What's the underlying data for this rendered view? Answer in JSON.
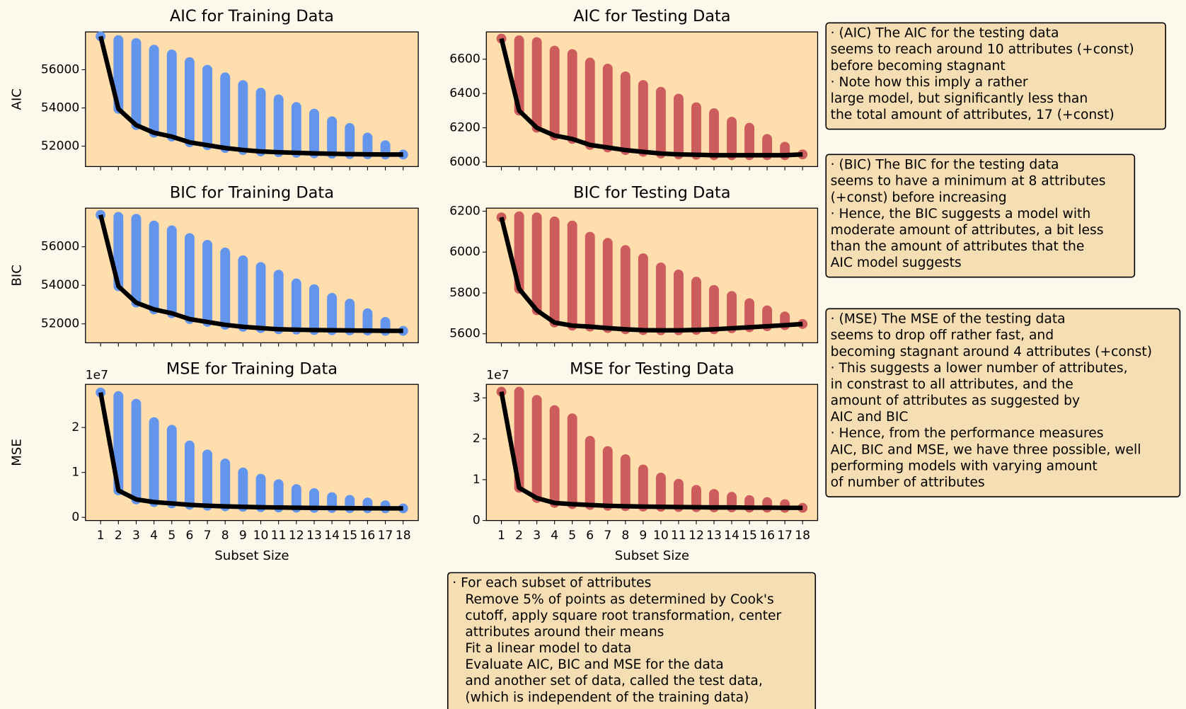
{
  "chart_data": [
    {
      "type": "range_line",
      "title": "AIC for Training Data",
      "ylabel": "AIC",
      "scatter_color": "#6495ed",
      "line_color": "#000000",
      "values": [
        57750,
        53950,
        53100,
        52700,
        52500,
        52200,
        52050,
        51900,
        51800,
        51720,
        51680,
        51650,
        51620,
        51600,
        51580,
        51570,
        51560,
        51560
      ],
      "max_values": [
        57750,
        57550,
        57400,
        57050,
        56800,
        56400,
        56000,
        55600,
        55200,
        54800,
        54450,
        54050,
        53700,
        53300,
        52950,
        52450,
        52050,
        51560
      ],
      "ylim": [
        50930,
        57980
      ],
      "yticks": [
        52000,
        54000,
        56000
      ]
    },
    {
      "type": "range_line",
      "title": "AIC for Testing Data",
      "scatter_color": "#cd5c5c",
      "line_color": "#000000",
      "values": [
        6720,
        6300,
        6200,
        6155,
        6135,
        6100,
        6085,
        6070,
        6060,
        6050,
        6045,
        6043,
        6040,
        6040,
        6040,
        6040,
        6040,
        6045
      ],
      "max_values": [
        6720,
        6710,
        6700,
        6650,
        6630,
        6580,
        6545,
        6500,
        6450,
        6410,
        6370,
        6320,
        6285,
        6235,
        6200,
        6135,
        6090,
        6045
      ],
      "ylim": [
        5974,
        6759
      ],
      "yticks": [
        6000,
        6200,
        6400,
        6600
      ]
    },
    {
      "type": "range_line",
      "title": "BIC for Training Data",
      "ylabel": "BIC",
      "scatter_color": "#6495ed",
      "line_color": "#000000",
      "values": [
        57650,
        53950,
        53100,
        52750,
        52550,
        52250,
        52100,
        51950,
        51850,
        51780,
        51720,
        51700,
        51680,
        51670,
        51660,
        51650,
        51640,
        51640
      ],
      "max_values": [
        57650,
        57550,
        57450,
        57100,
        56850,
        56450,
        56100,
        55700,
        55300,
        54950,
        54550,
        54100,
        53800,
        53350,
        53050,
        52550,
        52100,
        51640
      ],
      "ylim": [
        51020,
        58000
      ],
      "yticks": [
        52000,
        54000,
        56000
      ]
    },
    {
      "type": "range_line",
      "title": "BIC for Testing Data",
      "scatter_color": "#cd5c5c",
      "line_color": "#000000",
      "values": [
        6170,
        5820,
        5715,
        5655,
        5640,
        5635,
        5628,
        5622,
        5618,
        5617,
        5617,
        5619,
        5622,
        5627,
        5632,
        5637,
        5642,
        5648
      ],
      "max_values": [
        6170,
        6175,
        6170,
        6150,
        6130,
        6075,
        6045,
        6010,
        5970,
        5925,
        5890,
        5855,
        5815,
        5785,
        5750,
        5715,
        5685,
        5648
      ],
      "ylim": [
        5556,
        6215
      ],
      "yticks": [
        5600,
        5800,
        6000,
        6200
      ]
    },
    {
      "type": "range_line",
      "title": "MSE for Training Data",
      "ylabel": "MSE",
      "xlabel": "Subset Size",
      "offset_label": "1e7",
      "scatter_color": "#6495ed",
      "line_color": "#000000",
      "categories": [
        "1",
        "2",
        "3",
        "4",
        "5",
        "6",
        "7",
        "8",
        "9",
        "10",
        "11",
        "12",
        "13",
        "14",
        "15",
        "16",
        "17",
        "18"
      ],
      "values": [
        27800000,
        6000000,
        4000000,
        3400000,
        3100000,
        2800000,
        2600000,
        2450000,
        2350000,
        2250000,
        2200000,
        2150000,
        2100000,
        2080000,
        2050000,
        2030000,
        2010000,
        2000000
      ],
      "max_values": [
        27800000,
        27000000,
        25300000,
        21200000,
        19500000,
        16000000,
        14000000,
        12000000,
        10000000,
        8600000,
        7400000,
        6300000,
        5400000,
        4500000,
        3900000,
        3300000,
        2700000,
        2000000
      ],
      "ylim": [
        -700000,
        29600000
      ],
      "yticks": [
        0,
        {
          "value": 10000000,
          "label": "1"
        },
        {
          "value": 20000000,
          "label": "2"
        }
      ]
    },
    {
      "type": "range_line",
      "title": "MSE for Testing Data",
      "xlabel": "Subset Size",
      "offset_label": "1e7",
      "scatter_color": "#cd5c5c",
      "line_color": "#000000",
      "categories": [
        "1",
        "2",
        "3",
        "4",
        "5",
        "6",
        "7",
        "8",
        "9",
        "10",
        "11",
        "12",
        "13",
        "14",
        "15",
        "16",
        "17",
        "18"
      ],
      "values": [
        31500000,
        8000000,
        5500000,
        4300000,
        4000000,
        3800000,
        3600000,
        3500000,
        3400000,
        3350000,
        3300000,
        3250000,
        3200000,
        3200000,
        3150000,
        3150000,
        3100000,
        3100000
      ],
      "max_values": [
        31500000,
        31500000,
        29500000,
        27000000,
        25000000,
        19500000,
        17000000,
        15000000,
        12500000,
        10500000,
        9000000,
        7500000,
        6500000,
        5800000,
        5000000,
        4500000,
        4000000,
        3100000
      ],
      "ylim": [
        0,
        33300000
      ],
      "yticks": [
        0,
        {
          "value": 10000000,
          "label": "1"
        },
        {
          "value": 20000000,
          "label": "2"
        },
        {
          "value": 30000000,
          "label": "3"
        }
      ]
    }
  ],
  "notes": [
    {
      "lines": [
        "· (AIC) The AIC for the testing data",
        "seems to reach around 10 attributes (+const)",
        "before becoming stagnant",
        "· Note how this imply a rather",
        "large model, but significantly less than",
        "the total amount of attributes, 17 (+const)"
      ]
    },
    {
      "lines": [
        "· (BIC) The BIC for the testing data",
        "seems to have a minimum at 8 attributes",
        "(+const) before increasing",
        "· Hence, the BIC suggests a model with",
        "moderate amount of attributes, a bit less",
        "than the amount of attributes that the",
        "AIC model suggests"
      ]
    },
    {
      "lines": [
        "· (MSE) The MSE of the testing data",
        "seems to drop off rather fast, and",
        "becoming stagnant around 4 attributes (+const)",
        "· This suggests a lower number of attributes,",
        "in constrast to all attributes, and the",
        "amount of attributes as suggested by",
        "AIC and BIC",
        "· Hence, from the performance measures",
        "AIC, BIC and MSE, we have three possible, well",
        "performing models with varying amount",
        "of number of attributes"
      ]
    },
    {
      "heading": "· For each subset of attributes",
      "lines": [
        "Remove 5% of points as determined by Cook's",
        "cutoff, apply square root transformation, center",
        "attributes around their means",
        "Fit a linear model to data",
        "Evaluate AIC, BIC and MSE for the data",
        "and another set of data, called the test data,",
        "(which is independent of the training data)"
      ]
    }
  ]
}
